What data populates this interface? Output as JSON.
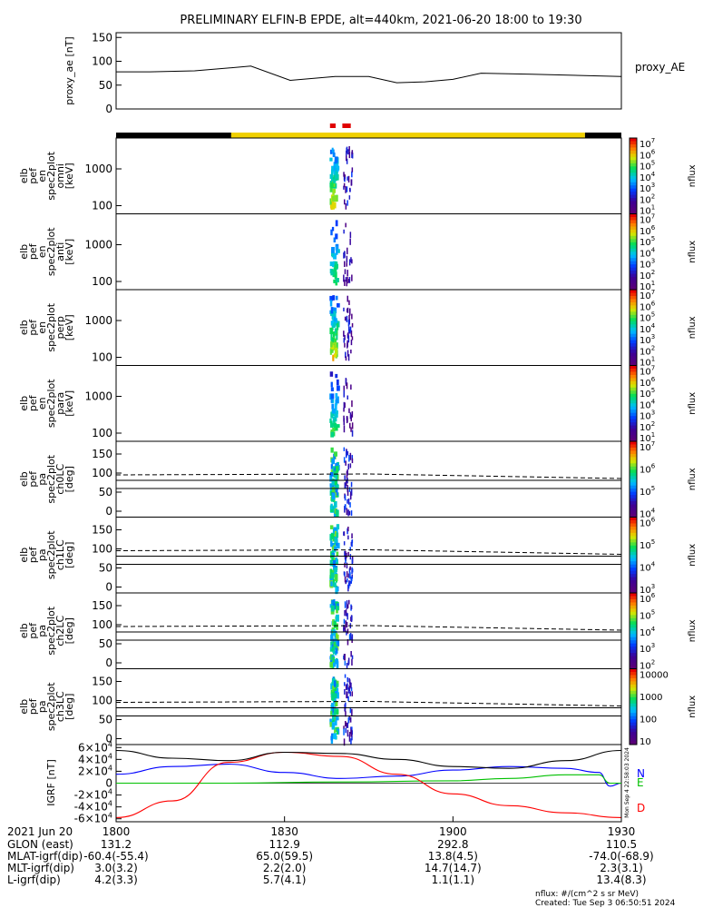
{
  "chart_data": {
    "type": "spectrogram-stack",
    "title": "PRELIMINARY ELFIN-B EPDE, alt=440km, 2021-06-20 18:00 to 19:30",
    "colors": {
      "yellow_bar": "#f0d000",
      "black_bar": "#000000",
      "red_marker": "#e00000",
      "trace_blue": "#0000ff",
      "trace_green": "#00c000",
      "trace_red": "#ff0000"
    },
    "proxy_ae": {
      "ylabel": "proxy_ae [nT]",
      "legend": "proxy_AE",
      "yticks": [
        "150",
        "100",
        "50",
        "0"
      ],
      "ylim": [
        0,
        160
      ],
      "times_min": [
        0,
        6,
        14,
        24,
        31,
        39,
        45,
        50,
        55,
        60,
        65,
        74,
        90
      ],
      "values": [
        78,
        78,
        80,
        90,
        60,
        68,
        68,
        55,
        57,
        62,
        75,
        73,
        68
      ]
    },
    "energy_panels": [
      {
        "ylabel": [
          "elb",
          "pef",
          "en",
          "spec2plot",
          "omni",
          "[keV]"
        ],
        "yticks": [
          "1000",
          "100"
        ],
        "cbar_ticks": [
          "10^7",
          "10^6",
          "10^5",
          "10^4",
          "10^3",
          "10^2",
          "10^1"
        ],
        "cbar_label": "nflux"
      },
      {
        "ylabel": [
          "elb",
          "pef",
          "en",
          "spec2plot",
          "anti",
          "[keV]"
        ],
        "yticks": [
          "1000",
          "100"
        ],
        "cbar_ticks": [
          "10^7",
          "10^6",
          "10^5",
          "10^4",
          "10^3",
          "10^2",
          "10^1"
        ],
        "cbar_label": "nflux"
      },
      {
        "ylabel": [
          "elb",
          "pef",
          "en",
          "spec2plot",
          "perp",
          "[keV]"
        ],
        "yticks": [
          "1000",
          "100"
        ],
        "cbar_ticks": [
          "10^7",
          "10^6",
          "10^5",
          "10^4",
          "10^3",
          "10^2",
          "10^1"
        ],
        "cbar_label": "nflux"
      },
      {
        "ylabel": [
          "elb",
          "pef",
          "en",
          "spec2plot",
          "para",
          "[keV]"
        ],
        "yticks": [
          "1000",
          "100"
        ],
        "cbar_ticks": [
          "10^7",
          "10^6",
          "10^5",
          "10^4",
          "10^3",
          "10^2",
          "10^1"
        ],
        "cbar_label": "nflux"
      }
    ],
    "pa_panels": [
      {
        "ylabel": [
          "elb",
          "pef",
          "pa",
          "spec2plot",
          "ch0LC",
          "[deg]"
        ],
        "yticks": [
          "150",
          "100",
          "50",
          "0"
        ],
        "cbar_ticks": [
          "10^7",
          "10^6",
          "10^5",
          "10^4"
        ],
        "cbar_label": "nflux"
      },
      {
        "ylabel": [
          "elb",
          "pef",
          "pa",
          "spec2plot",
          "ch1LC",
          "[deg]"
        ],
        "yticks": [
          "150",
          "100",
          "50",
          "0"
        ],
        "cbar_ticks": [
          "10^6",
          "10^5",
          "10^4",
          "10^3"
        ],
        "cbar_label": "nflux"
      },
      {
        "ylabel": [
          "elb",
          "pef",
          "pa",
          "spec2plot",
          "ch2LC",
          "[deg]"
        ],
        "yticks": [
          "150",
          "100",
          "50",
          "0"
        ],
        "cbar_ticks": [
          "10^6",
          "10^5",
          "10^4",
          "10^3",
          "10^2"
        ],
        "cbar_label": "nflux"
      },
      {
        "ylabel": [
          "elb",
          "pef",
          "pa",
          "spec2plot",
          "ch3LC",
          "[deg]"
        ],
        "yticks": [
          "150",
          "100",
          "50",
          "0"
        ],
        "cbar_ticks": [
          "10000",
          "1000",
          "100",
          "10"
        ],
        "cbar_label": "nflux"
      }
    ],
    "igrf": {
      "ylabel": "IGRF [nT]",
      "yticks": [
        "6×10^4",
        "4×10^4",
        "2×10^4",
        "0",
        "-2×10^4",
        "-4×10^4",
        "-6×10^4"
      ],
      "ylim": [
        -65000,
        65000
      ],
      "legend": [
        "N",
        "E",
        "D"
      ],
      "side_label": "Mon Sep  4 22:58:03 2024",
      "series": [
        {
          "name": "N",
          "times_min": [
            0,
            10,
            20,
            30,
            40,
            50,
            60,
            70,
            80,
            86,
            88,
            90
          ],
          "values": [
            15000,
            28000,
            32000,
            18000,
            8000,
            12000,
            22000,
            28000,
            25000,
            18000,
            -5000,
            0
          ]
        },
        {
          "name": "E",
          "times_min": [
            0,
            20,
            40,
            60,
            70,
            80,
            86,
            88,
            90
          ],
          "values": [
            0,
            0,
            2000,
            4000,
            8000,
            14000,
            14000,
            0,
            0
          ]
        },
        {
          "name": "D",
          "times_min": [
            0,
            10,
            20,
            30,
            40,
            50,
            60,
            70,
            80,
            90
          ],
          "values": [
            -58000,
            -30000,
            35000,
            52000,
            45000,
            15000,
            -18000,
            -38000,
            -50000,
            -58000
          ]
        },
        {
          "name": "total",
          "times_min": [
            0,
            10,
            20,
            30,
            40,
            50,
            60,
            70,
            80,
            90
          ],
          "values": [
            55000,
            42000,
            38000,
            52000,
            50000,
            40000,
            28000,
            25000,
            38000,
            55000
          ]
        }
      ]
    },
    "x_axis": {
      "label_rows": [
        "2021 Jun 20",
        "GLON (east)",
        "MLAT-igrf(dip)",
        "MLT-igrf(dip)",
        "L-igrf(dip)"
      ],
      "ticks": [
        {
          "time_min": 0,
          "values": [
            "1800",
            "131.2",
            "-60.4(-55.4)",
            "3.0(3.2)",
            "4.2(3.3)"
          ]
        },
        {
          "time_min": 30,
          "values": [
            "1830",
            "112.9",
            "65.0(59.5)",
            "2.2(2.0)",
            "5.7(4.1)"
          ]
        },
        {
          "time_min": 60,
          "values": [
            "1900",
            "292.8",
            "13.8(4.5)",
            "14.7(14.7)",
            "1.1(1.1)"
          ]
        },
        {
          "time_min": 90,
          "values": [
            "1930",
            "110.5",
            "-74.0(-68.9)",
            "2.3(3.1)",
            "13.4(8.3)"
          ]
        }
      ]
    },
    "science_zone": {
      "black_bar": [
        [
          0,
          20.5
        ],
        [
          83.5,
          90
        ]
      ],
      "yellow_bar": [
        [
          20.5,
          83.5
        ]
      ],
      "red_markers": [
        [
          38.1,
          39.1
        ],
        [
          40.3,
          41.8
        ]
      ]
    },
    "footer": {
      "units": "nflux: #/(cm^2 s sr MeV)",
      "created": "Created: Tue Sep  3 06:50:51 2024"
    }
  }
}
